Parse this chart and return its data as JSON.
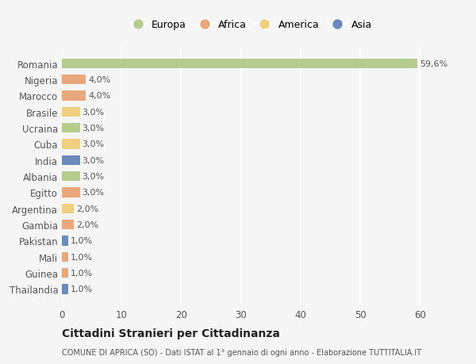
{
  "countries": [
    "Romania",
    "Nigeria",
    "Marocco",
    "Brasile",
    "Ucraina",
    "Cuba",
    "India",
    "Albania",
    "Egitto",
    "Argentina",
    "Gambia",
    "Pakistan",
    "Mali",
    "Guinea",
    "Thailandia"
  ],
  "values": [
    59.6,
    4.0,
    4.0,
    3.0,
    3.0,
    3.0,
    3.0,
    3.0,
    3.0,
    2.0,
    2.0,
    1.0,
    1.0,
    1.0,
    1.0
  ],
  "labels": [
    "59,6%",
    "4,0%",
    "4,0%",
    "3,0%",
    "3,0%",
    "3,0%",
    "3,0%",
    "3,0%",
    "3,0%",
    "2,0%",
    "2,0%",
    "1,0%",
    "1,0%",
    "1,0%",
    "1,0%"
  ],
  "continents": [
    "Europa",
    "Africa",
    "Africa",
    "America",
    "Europa",
    "America",
    "Asia",
    "Europa",
    "Africa",
    "America",
    "Africa",
    "Asia",
    "Africa",
    "Africa",
    "Asia"
  ],
  "continent_colors": {
    "Europa": "#b5cc8e",
    "Africa": "#e8a87c",
    "America": "#f0d080",
    "Asia": "#6b8cba"
  },
  "legend_order": [
    "Europa",
    "Africa",
    "America",
    "Asia"
  ],
  "title": "Cittadini Stranieri per Cittadinanza",
  "subtitle": "COMUNE DI APRICA (SO) - Dati ISTAT al 1° gennaio di ogni anno - Elaborazione TUTTITALIA.IT",
  "xlim": [
    0,
    63
  ],
  "xticks": [
    0,
    10,
    20,
    30,
    40,
    50,
    60
  ],
  "background_color": "#f5f5f5",
  "grid_color": "#ffffff",
  "bar_height": 0.6
}
